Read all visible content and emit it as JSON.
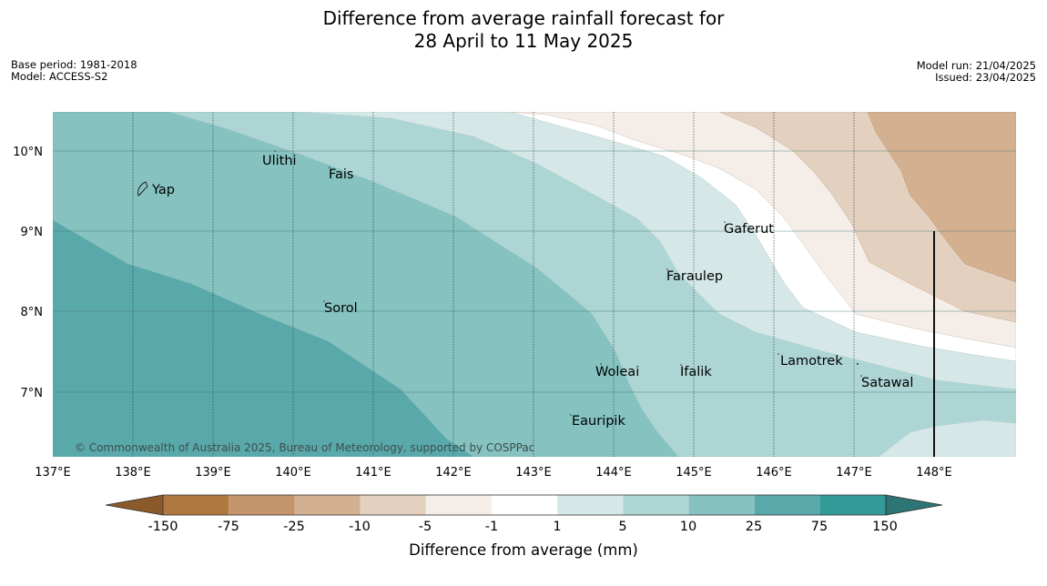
{
  "title": {
    "line1": "Difference from average rainfall forecast for",
    "line2": "28 April to 11 May 2025"
  },
  "meta": {
    "base_period": "Base period: 1981-2018",
    "model": "Model: ACCESS-S2",
    "model_run": "Model run: 21/04/2025",
    "issued": "Issued: 23/04/2025"
  },
  "map": {
    "lat_labels": [
      "10°N",
      "9°N",
      "8°N",
      "7°N"
    ],
    "lon_labels": [
      "137°E",
      "138°E",
      "139°E",
      "140°E",
      "141°E",
      "142°E",
      "143°E",
      "144°E",
      "145°E",
      "146°E",
      "147°E",
      "148°E"
    ],
    "places": {
      "yap": "Yap",
      "ulithi": "Ulithi",
      "fais": "Fais",
      "gaferut": "Gaferut",
      "faraulep": "Faraulep",
      "sorol": "Sorol",
      "lamotrek": "Lamotrek",
      "woleai": "Woleai",
      "ifalik": "Ifalik",
      "satawal": "Satawal",
      "eauripik": "Eauripik"
    },
    "copyright": "© Commonwealth of Australia 2025, Bureau of Meteorology, supported by COSPPac"
  },
  "colorbar": {
    "title": "Difference from average (mm)",
    "labels": [
      "-150",
      "-75",
      "-25",
      "-10",
      "-5",
      "-1",
      "1",
      "5",
      "10",
      "25",
      "75",
      "150"
    ],
    "colors": [
      "#8c5a2a",
      "#b07841",
      "#c4956a",
      "#d3b090",
      "#e3d0be",
      "#f4ede8",
      "#ffffff",
      "#d5e8e7",
      "#add5d4",
      "#85c2c0",
      "#5aa9aa",
      "#339a98",
      "#2d7474"
    ]
  }
}
